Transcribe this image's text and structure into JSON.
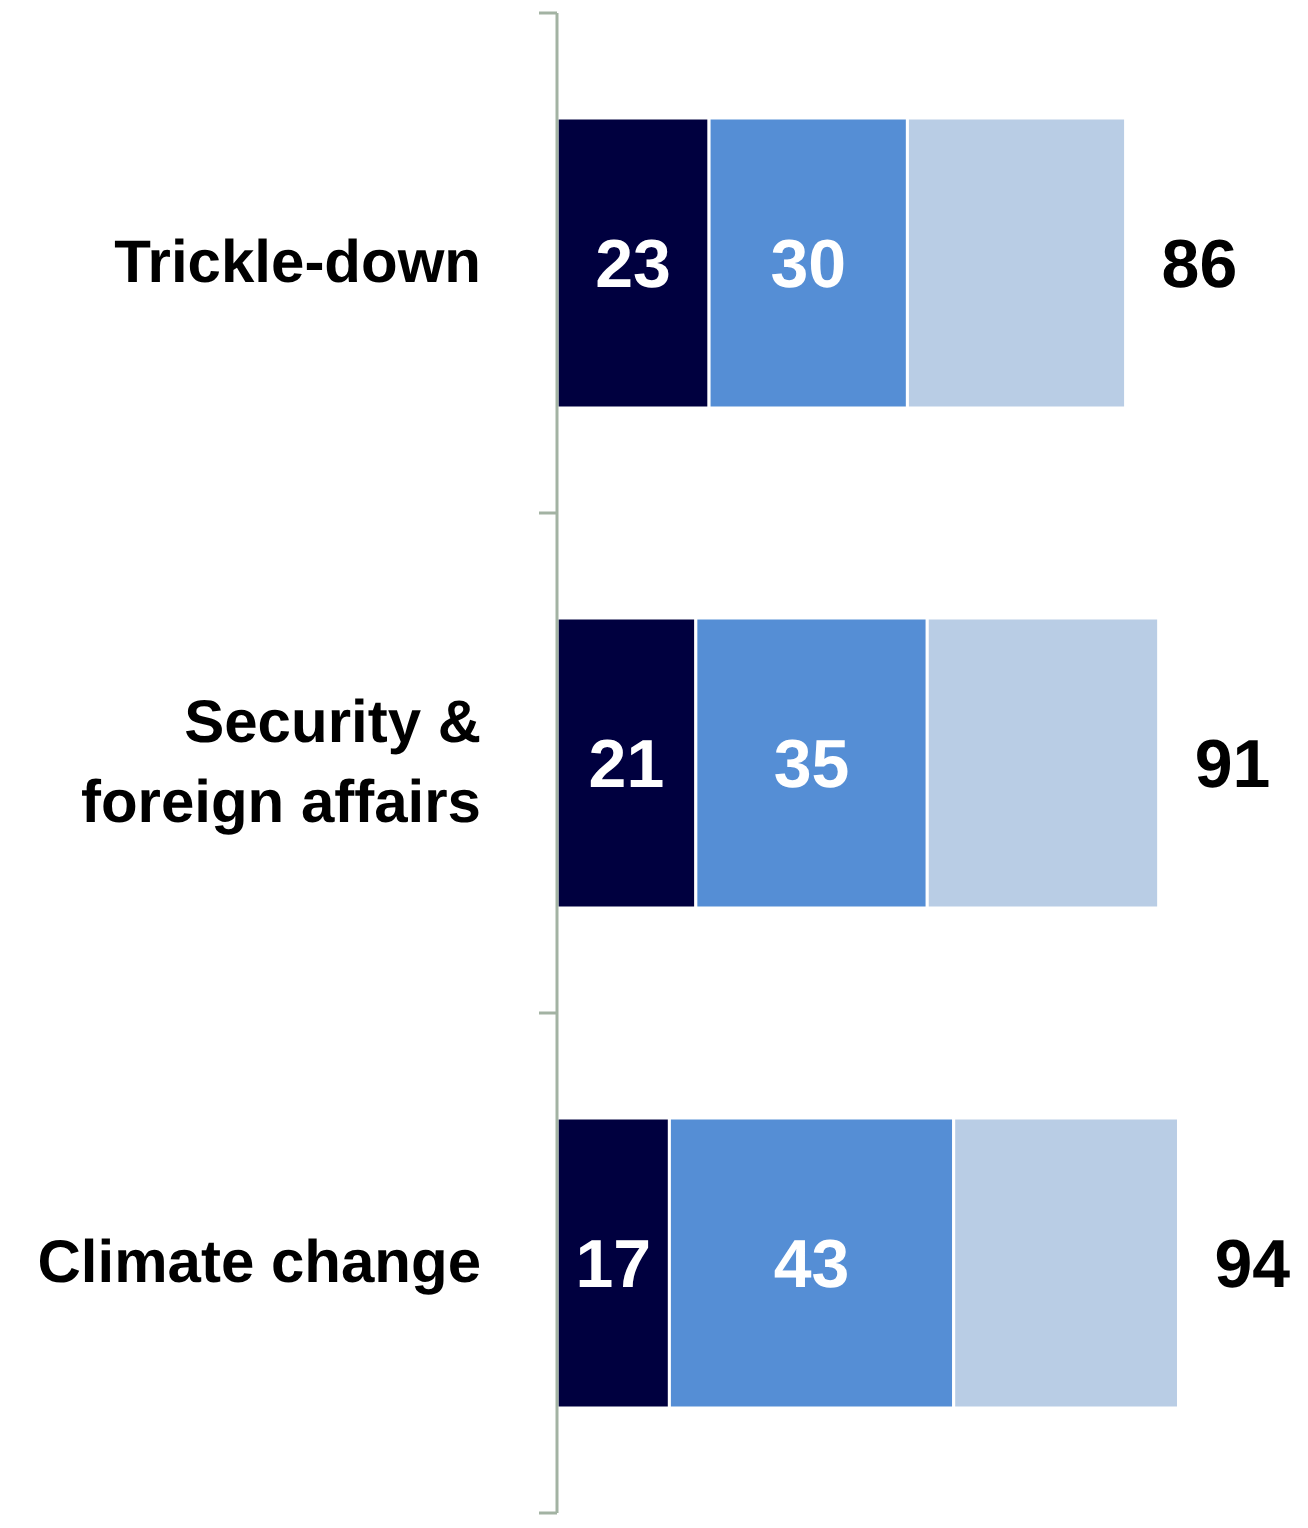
{
  "chart_data": {
    "type": "bar",
    "orientation": "horizontal",
    "stacked": true,
    "tick_labels": "y",
    "categories": [
      "Trickle-down",
      "Security & foreign affairs",
      "Climate change"
    ],
    "series": [
      {
        "color": "#00003f",
        "values": [
          23,
          21,
          17
        ],
        "value_labels": [
          "23",
          "21",
          "17"
        ]
      },
      {
        "color": "#558ed5",
        "values": [
          30,
          35,
          43
        ],
        "value_labels": [
          "30",
          "35",
          "43"
        ]
      },
      {
        "color": "#b9cde5",
        "values": [
          33,
          35,
          34
        ]
      }
    ],
    "totals": [
      "86",
      "91",
      "94"
    ]
  }
}
